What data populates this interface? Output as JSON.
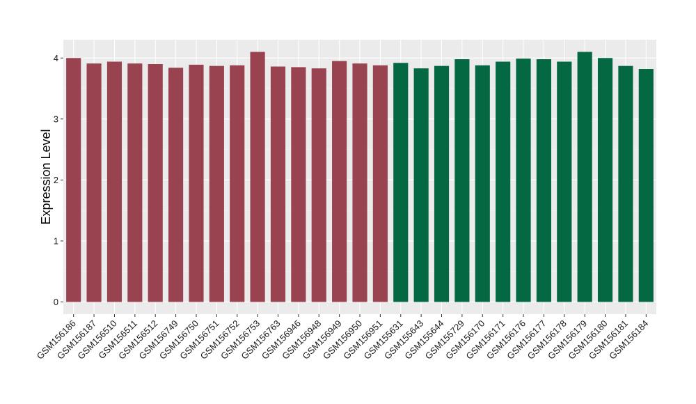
{
  "chart_data": {
    "type": "bar",
    "title": "",
    "xlabel": "",
    "ylabel": "Expression Level",
    "ylim": [
      -0.2,
      4.3
    ],
    "yticks": [
      0,
      1,
      2,
      3,
      4
    ],
    "grid": true,
    "legend": "none",
    "categories": [
      "GSM156186",
      "GSM156187",
      "GSM156510",
      "GSM156511",
      "GSM156512",
      "GSM156749",
      "GSM156750",
      "GSM156751",
      "GSM156752",
      "GSM156753",
      "GSM156763",
      "GSM156946",
      "GSM156948",
      "GSM156949",
      "GSM156950",
      "GSM156951",
      "GSM155631",
      "GSM155643",
      "GSM155644",
      "GSM155729",
      "GSM156170",
      "GSM156171",
      "GSM156176",
      "GSM156177",
      "GSM156178",
      "GSM156179",
      "GSM156180",
      "GSM156181",
      "GSM156184"
    ],
    "values": [
      4.0,
      3.91,
      3.94,
      3.91,
      3.9,
      3.84,
      3.89,
      3.87,
      3.88,
      4.1,
      3.86,
      3.85,
      3.83,
      3.95,
      3.91,
      3.88,
      3.92,
      3.83,
      3.87,
      3.98,
      3.88,
      3.94,
      3.99,
      3.98,
      3.94,
      4.1,
      4.0,
      3.87,
      3.82
    ],
    "group_sizes": [
      16,
      13
    ],
    "colors": {
      "group1": "#9a4350",
      "group2": "#046943",
      "panel": "#ebebeb",
      "grid_major": "#ffffff",
      "grid_minor": "#f5f5f5"
    }
  }
}
